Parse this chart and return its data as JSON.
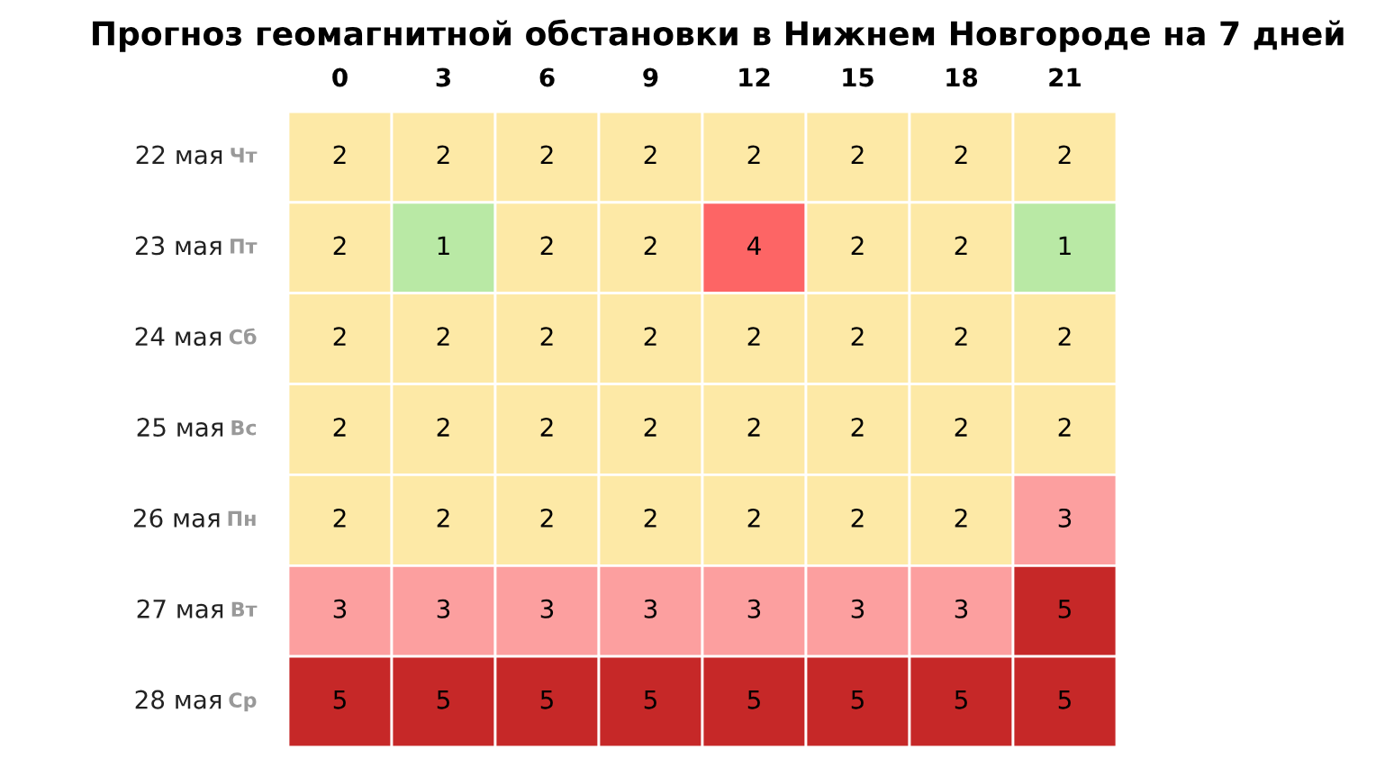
{
  "chart_data": {
    "type": "heatmap",
    "title": "Прогноз геомагнитной обстановки в Нижнем Новгороде на 7 дней",
    "categories": [
      "0",
      "3",
      "6",
      "9",
      "12",
      "15",
      "18",
      "21"
    ],
    "y_categories": [
      "22 мая Чт",
      "23 мая Пт",
      "24 мая Сб",
      "25 мая Вс",
      "26 мая Пн",
      "27 мая Вт",
      "28 мая Ср"
    ],
    "cells": [
      [
        2,
        2,
        2,
        2,
        2,
        2,
        2,
        2
      ],
      [
        2,
        1,
        2,
        2,
        4,
        2,
        2,
        1
      ],
      [
        2,
        2,
        2,
        2,
        2,
        2,
        2,
        2
      ],
      [
        2,
        2,
        2,
        2,
        2,
        2,
        2,
        2
      ],
      [
        2,
        2,
        2,
        2,
        2,
        2,
        2,
        3
      ],
      [
        3,
        3,
        3,
        3,
        3,
        3,
        3,
        5
      ],
      [
        5,
        5,
        5,
        5,
        5,
        5,
        5,
        5
      ]
    ],
    "colors": [
      "#b9e9a5",
      "#fde9a6",
      "#fc9f9f",
      "#fd6565",
      "#c62828"
    ],
    "data_labels": true
  }
}
